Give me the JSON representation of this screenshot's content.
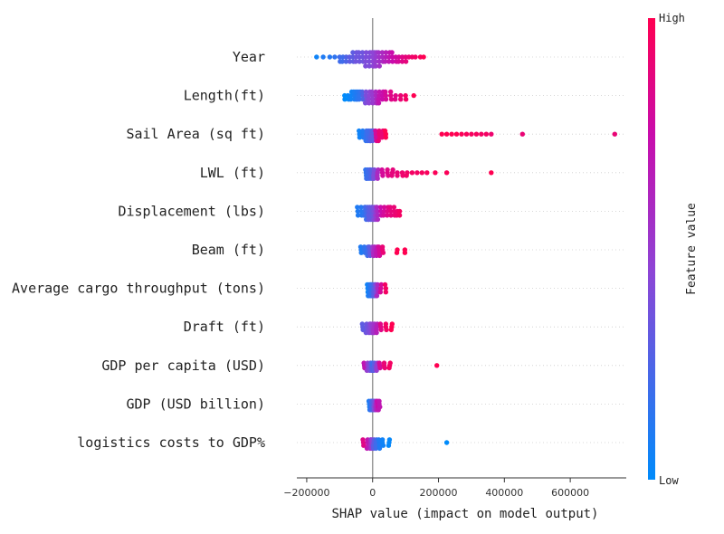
{
  "chart_data": {
    "type": "scatter",
    "subtype": "shap-beeswarm",
    "title": "",
    "xlabel": "SHAP value (impact on model output)",
    "xlim": [
      -230000,
      770000
    ],
    "xticks": [
      -200000,
      0,
      200000,
      400000,
      600000
    ],
    "xtick_labels": [
      "−200000",
      "0",
      "200000",
      "400000",
      "600000"
    ],
    "colorbar": {
      "label": "Feature value",
      "high_label": "High",
      "low_label": "Low",
      "colors": [
        "#008bfb",
        "#8d45d6",
        "#c90cab",
        "#ff0051"
      ]
    },
    "features": [
      {
        "name": "Year",
        "spread": 11,
        "points": [
          [
            -170000,
            0.05
          ],
          [
            -150000,
            0.1
          ],
          [
            -130000,
            0.12
          ],
          [
            -115000,
            0.15
          ],
          [
            -100000,
            0.2
          ],
          [
            -90000,
            0.2
          ],
          [
            -80000,
            0.25
          ],
          [
            -70000,
            0.3
          ],
          [
            -60000,
            0.3
          ],
          [
            -50000,
            0.35
          ],
          [
            -40000,
            0.35
          ],
          [
            -30000,
            0.35
          ],
          [
            -20000,
            0.4
          ],
          [
            -10000,
            0.4
          ],
          [
            0,
            0.45
          ],
          [
            5000,
            0.45
          ],
          [
            10000,
            0.5
          ],
          [
            20000,
            0.55
          ],
          [
            30000,
            0.6
          ],
          [
            40000,
            0.65
          ],
          [
            50000,
            0.7
          ],
          [
            60000,
            0.75
          ],
          [
            70000,
            0.78
          ],
          [
            80000,
            0.8
          ],
          [
            90000,
            0.85
          ],
          [
            100000,
            0.88
          ],
          [
            110000,
            0.9
          ],
          [
            120000,
            0.93
          ],
          [
            130000,
            0.95
          ],
          [
            145000,
            0.97
          ],
          [
            155000,
            1.0
          ]
        ]
      },
      {
        "name": "Length(ft)",
        "spread": 9,
        "points": [
          [
            -85000,
            0.0
          ],
          [
            -75000,
            0.02
          ],
          [
            -65000,
            0.05
          ],
          [
            -55000,
            0.08
          ],
          [
            -50000,
            0.1
          ],
          [
            -45000,
            0.12
          ],
          [
            -40000,
            0.15
          ],
          [
            -30000,
            0.25
          ],
          [
            -20000,
            0.4
          ],
          [
            -10000,
            0.45
          ],
          [
            0,
            0.5
          ],
          [
            10000,
            0.6
          ],
          [
            20000,
            0.7
          ],
          [
            30000,
            0.75
          ],
          [
            40000,
            0.8
          ],
          [
            55000,
            0.85
          ],
          [
            70000,
            0.85
          ],
          [
            85000,
            0.9
          ],
          [
            100000,
            0.95
          ],
          [
            125000,
            1.0
          ]
        ]
      },
      {
        "name": "Sail Area (sq ft)",
        "spread": 8,
        "points": [
          [
            -40000,
            0.05
          ],
          [
            -30000,
            0.1
          ],
          [
            -20000,
            0.15
          ],
          [
            -15000,
            0.2
          ],
          [
            -10000,
            0.2
          ],
          [
            -5000,
            0.25
          ],
          [
            0,
            0.3
          ],
          [
            10000,
            0.8
          ],
          [
            20000,
            0.9
          ],
          [
            30000,
            0.9
          ],
          [
            40000,
            1.0
          ],
          [
            210000,
            1.0
          ],
          [
            225000,
            1.0
          ],
          [
            240000,
            1.0
          ],
          [
            255000,
            1.0
          ],
          [
            270000,
            0.98
          ],
          [
            285000,
            0.97
          ],
          [
            300000,
            0.96
          ],
          [
            315000,
            0.96
          ],
          [
            330000,
            0.95
          ],
          [
            345000,
            0.95
          ],
          [
            360000,
            0.92
          ],
          [
            455000,
            0.9
          ],
          [
            735000,
            0.9
          ]
        ]
      },
      {
        "name": "LWL (ft)",
        "spread": 7,
        "points": [
          [
            -20000,
            0.15
          ],
          [
            -15000,
            0.2
          ],
          [
            -10000,
            0.2
          ],
          [
            -5000,
            0.25
          ],
          [
            0,
            0.3
          ],
          [
            5000,
            0.4
          ],
          [
            15000,
            0.6
          ],
          [
            30000,
            0.8
          ],
          [
            45000,
            0.85
          ],
          [
            60000,
            0.88
          ],
          [
            75000,
            0.9
          ],
          [
            90000,
            0.92
          ],
          [
            105000,
            0.94
          ],
          [
            120000,
            0.95
          ],
          [
            135000,
            0.95
          ],
          [
            150000,
            0.96
          ],
          [
            165000,
            0.97
          ],
          [
            190000,
            0.98
          ],
          [
            225000,
            0.98
          ],
          [
            360000,
            1.0
          ]
        ]
      },
      {
        "name": "Displacement (lbs)",
        "spread": 10,
        "points": [
          [
            -45000,
            0.1
          ],
          [
            -35000,
            0.12
          ],
          [
            -25000,
            0.15
          ],
          [
            -20000,
            0.2
          ],
          [
            -15000,
            0.25
          ],
          [
            -10000,
            0.3
          ],
          [
            -5000,
            0.3
          ],
          [
            0,
            0.35
          ],
          [
            5000,
            0.4
          ],
          [
            10000,
            0.5
          ],
          [
            15000,
            0.6
          ],
          [
            25000,
            0.75
          ],
          [
            35000,
            0.8
          ],
          [
            45000,
            0.85
          ],
          [
            55000,
            0.88
          ],
          [
            65000,
            0.9
          ],
          [
            75000,
            0.92
          ],
          [
            82000,
            0.95
          ]
        ]
      },
      {
        "name": "Beam (ft)",
        "spread": 7,
        "points": [
          [
            -35000,
            0.1
          ],
          [
            -25000,
            0.15
          ],
          [
            -15000,
            0.2
          ],
          [
            -8000,
            0.3
          ],
          [
            0,
            0.5
          ],
          [
            5000,
            0.6
          ],
          [
            12000,
            0.7
          ],
          [
            20000,
            0.8
          ],
          [
            30000,
            0.9
          ],
          [
            75000,
            1.0
          ],
          [
            98000,
            1.0
          ]
        ]
      },
      {
        "name": "Average cargo throughput (tons)",
        "spread": 9,
        "points": [
          [
            -15000,
            0.05
          ],
          [
            -10000,
            0.1
          ],
          [
            -6000,
            0.12
          ],
          [
            -3000,
            0.15
          ],
          [
            0,
            0.2
          ],
          [
            3000,
            0.25
          ],
          [
            6000,
            0.3
          ],
          [
            10000,
            0.4
          ],
          [
            15000,
            0.6
          ],
          [
            25000,
            0.8
          ],
          [
            40000,
            0.95
          ]
        ]
      },
      {
        "name": "Draft (ft)",
        "spread": 7,
        "points": [
          [
            -30000,
            0.3
          ],
          [
            -18000,
            0.35
          ],
          [
            -10000,
            0.4
          ],
          [
            -4000,
            0.45
          ],
          [
            0,
            0.5
          ],
          [
            5000,
            0.55
          ],
          [
            12000,
            0.65
          ],
          [
            25000,
            0.85
          ],
          [
            40000,
            0.95
          ],
          [
            58000,
            1.0
          ]
        ]
      },
      {
        "name": "GDP per capita (USD)",
        "spread": 6,
        "points": [
          [
            -25000,
            0.7
          ],
          [
            -15000,
            0.5
          ],
          [
            -8000,
            0.4
          ],
          [
            -3000,
            0.3
          ],
          [
            0,
            0.2
          ],
          [
            5000,
            0.3
          ],
          [
            12000,
            0.5
          ],
          [
            22000,
            0.8
          ],
          [
            35000,
            0.9
          ],
          [
            52000,
            0.95
          ],
          [
            195000,
            1.0
          ]
        ]
      },
      {
        "name": "GDP (USD billion)",
        "spread": 7,
        "points": [
          [
            -10000,
            0.1
          ],
          [
            -5000,
            0.15
          ],
          [
            -2000,
            0.2
          ],
          [
            0,
            0.25
          ],
          [
            3000,
            0.3
          ],
          [
            6000,
            0.4
          ],
          [
            10000,
            0.6
          ],
          [
            15000,
            0.75
          ],
          [
            20000,
            0.7
          ]
        ]
      },
      {
        "name": "logistics costs to GDP%",
        "spread": 7,
        "points": [
          [
            -28000,
            0.85
          ],
          [
            -15000,
            0.7
          ],
          [
            -7000,
            0.6
          ],
          [
            -3000,
            0.5
          ],
          [
            0,
            0.45
          ],
          [
            4000,
            0.3
          ],
          [
            10000,
            0.2
          ],
          [
            20000,
            0.1
          ],
          [
            30000,
            0.05
          ],
          [
            50000,
            0.02
          ],
          [
            225000,
            0.0
          ]
        ]
      }
    ]
  }
}
